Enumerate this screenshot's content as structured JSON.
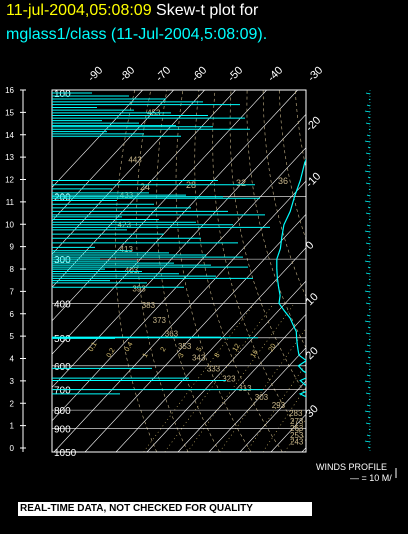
{
  "header": {
    "date_label": "11-jul-2004,05:08:09",
    "plot_label": "Skew-t plot for",
    "subtitle": "mglass1/class (11-Jul-2004,5:08:09)."
  },
  "footer_text": "REAL-TIME DATA, NOT CHECKED FOR QUALITY",
  "winds": {
    "label": "WINDS PROFILE",
    "scale": "— = 10 M/"
  },
  "colors": {
    "background": "#000000",
    "axes": "#ffffff",
    "isotherm": "#ffffff",
    "dry_adiabat": "#c8b68a",
    "moist_adiabat": "#c8b68a",
    "mixing_ratio": "#d8c070",
    "sounding": "#00ffff"
  },
  "chart_data": {
    "type": "line",
    "title": "",
    "xlabel": "",
    "ylabel": "",
    "pressure_range_hpa": [
      1050,
      100
    ],
    "skew_ticks_top": [
      "-90",
      "-80",
      "-70",
      "-60",
      "-50",
      "-40",
      "-30"
    ],
    "skew_ticks_right": [
      "-20",
      "-10",
      "0",
      "10",
      "20",
      "30"
    ],
    "pressure_labels": [
      "100",
      "200",
      "300",
      "400",
      "500",
      "600",
      "700",
      "800",
      "900",
      "1050"
    ],
    "height_km_labels": [
      "0",
      "1",
      "2",
      "3",
      "4",
      "5",
      "6",
      "7",
      "8",
      "9",
      "10",
      "11",
      "12",
      "13",
      "14",
      "15",
      "16"
    ],
    "mixing_ratio_labels": [
      "0.1",
      "0.2",
      "0.4",
      "1",
      "2",
      "3",
      "5",
      "8",
      "12",
      "16",
      "20"
    ],
    "theta_labels": [
      "24",
      "28",
      "32",
      "36"
    ],
    "adiabat_labels": [
      "243",
      "253",
      "263",
      "273",
      "283",
      "293",
      "303",
      "313",
      "323",
      "333",
      "343",
      "353",
      "363",
      "373",
      "383",
      "393",
      "403",
      "413",
      "423",
      "433",
      "443",
      "453"
    ],
    "temperature_profile": [
      {
        "p": 1000,
        "t": 26
      },
      {
        "p": 970,
        "t": 22
      },
      {
        "p": 950,
        "t": 19
      },
      {
        "p": 925,
        "t": 17
      },
      {
        "p": 900,
        "t": 15
      },
      {
        "p": 870,
        "t": 13
      },
      {
        "p": 850,
        "t": 12
      },
      {
        "p": 820,
        "t": 11
      },
      {
        "p": 800,
        "t": 9
      },
      {
        "p": 780,
        "t": 7
      },
      {
        "p": 760,
        "t": 8
      },
      {
        "p": 740,
        "t": 5
      },
      {
        "p": 720,
        "t": 4
      },
      {
        "p": 700,
        "t": 3
      },
      {
        "p": 680,
        "t": 1
      },
      {
        "p": 660,
        "t": 0
      },
      {
        "p": 640,
        "t": -2
      },
      {
        "p": 620,
        "t": -3
      },
      {
        "p": 600,
        "t": -5
      },
      {
        "p": 580,
        "t": -7
      },
      {
        "p": 560,
        "t": -9
      },
      {
        "p": 540,
        "t": -10
      },
      {
        "p": 520,
        "t": -12
      },
      {
        "p": 500,
        "t": -13
      },
      {
        "p": 480,
        "t": -15
      },
      {
        "p": 460,
        "t": -17
      },
      {
        "p": 440,
        "t": -20
      },
      {
        "p": 420,
        "t": -22
      },
      {
        "p": 400,
        "t": -25
      },
      {
        "p": 380,
        "t": -28
      },
      {
        "p": 360,
        "t": -31
      },
      {
        "p": 340,
        "t": -34
      },
      {
        "p": 320,
        "t": -37
      },
      {
        "p": 300,
        "t": -40
      },
      {
        "p": 280,
        "t": -43
      },
      {
        "p": 260,
        "t": -46
      },
      {
        "p": 240,
        "t": -49
      },
      {
        "p": 220,
        "t": -52
      },
      {
        "p": 200,
        "t": -54
      },
      {
        "p": 190,
        "t": -55
      },
      {
        "p": 180,
        "t": -56
      },
      {
        "p": 170,
        "t": -59
      },
      {
        "p": 160,
        "t": -62
      },
      {
        "p": 150,
        "t": -64
      },
      {
        "p": 140,
        "t": -66
      },
      {
        "p": 130,
        "t": -68
      },
      {
        "p": 120,
        "t": -69
      },
      {
        "p": 110,
        "t": -70
      },
      {
        "p": 100,
        "t": -71
      }
    ],
    "dewpoint_profile": [
      {
        "p": 1000,
        "t": 22
      },
      {
        "p": 970,
        "t": 19
      },
      {
        "p": 950,
        "t": 17
      },
      {
        "p": 925,
        "t": 15
      },
      {
        "p": 900,
        "t": 13
      },
      {
        "p": 870,
        "t": 10
      },
      {
        "p": 850,
        "t": 6
      },
      {
        "p": 820,
        "t": 4
      },
      {
        "p": 800,
        "t": 2
      },
      {
        "p": 780,
        "t": -2
      },
      {
        "p": 760,
        "t": -1
      },
      {
        "p": 740,
        "t": -4
      },
      {
        "p": 720,
        "t": -8
      },
      {
        "p": 700,
        "t": -6
      },
      {
        "p": 680,
        "t": -9
      },
      {
        "p": 660,
        "t": -12
      },
      {
        "p": 640,
        "t": -10
      },
      {
        "p": 620,
        "t": -14
      },
      {
        "p": 600,
        "t": -17
      },
      {
        "p": 580,
        "t": -16
      },
      {
        "p": 560,
        "t": -20
      },
      {
        "p": 540,
        "t": -22
      },
      {
        "p": 520,
        "t": -24
      },
      {
        "p": 500,
        "t": -26
      },
      {
        "p": 480,
        "t": -28
      },
      {
        "p": 460,
        "t": -31
      },
      {
        "p": 440,
        "t": -34
      },
      {
        "p": 420,
        "t": -38
      },
      {
        "p": 400,
        "t": -42
      },
      {
        "p": 380,
        "t": -44
      },
      {
        "p": 360,
        "t": -47
      },
      {
        "p": 340,
        "t": -50
      },
      {
        "p": 320,
        "t": -53
      },
      {
        "p": 300,
        "t": -56
      },
      {
        "p": 280,
        "t": -58
      },
      {
        "p": 260,
        "t": -61
      },
      {
        "p": 240,
        "t": -64
      },
      {
        "p": 220,
        "t": -66
      },
      {
        "p": 200,
        "t": -69
      },
      {
        "p": 180,
        "t": -72
      },
      {
        "p": 160,
        "t": -76
      },
      {
        "p": 140,
        "t": -79
      },
      {
        "p": 120,
        "t": -82
      },
      {
        "p": 100,
        "t": -84
      }
    ],
    "spike_pressures": [
      102,
      104,
      106,
      108,
      110,
      112,
      114,
      116,
      118,
      120,
      122,
      124,
      126,
      127,
      129,
      131,
      133,
      135,
      180,
      185,
      190,
      195,
      198,
      200,
      202,
      205,
      210,
      215,
      220,
      225,
      228,
      232,
      236,
      240,
      244,
      248,
      255,
      262,
      270,
      278,
      284,
      288,
      292,
      296,
      300,
      304,
      308,
      312,
      316,
      320,
      325,
      330,
      335,
      340,
      345,
      350,
      360,
      498,
      500,
      502,
      610,
      650,
      660,
      700,
      720
    ]
  }
}
